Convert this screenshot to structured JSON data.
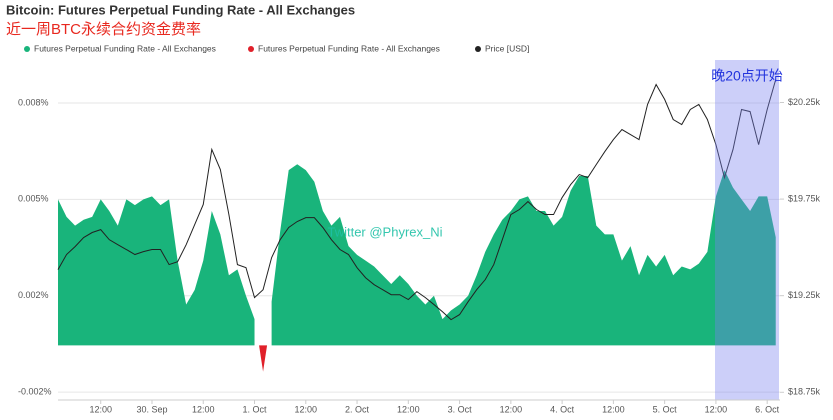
{
  "chart_data": {
    "type": "area",
    "title": "Bitcoin: Futures Perpetual Funding Rate - All Exchanges",
    "subtitle": "近一周BTC永续合约资金费率",
    "annotations": [
      "晚20点开始",
      "Twitter @Phyrex_Ni"
    ],
    "x": [
      0,
      2,
      4,
      6,
      8,
      10,
      12,
      14,
      16,
      18,
      20,
      22,
      24,
      26,
      28,
      30,
      32,
      34,
      36,
      38,
      40,
      42,
      44,
      46,
      48,
      50,
      52,
      54,
      56,
      58,
      60,
      62,
      64,
      66,
      68,
      70,
      72,
      74,
      76,
      78,
      80,
      82,
      84,
      86,
      88,
      90,
      92,
      94,
      96,
      98,
      100,
      102,
      104,
      106,
      108,
      110,
      112,
      114,
      116,
      118,
      120,
      122,
      124,
      126,
      128,
      130,
      132,
      134,
      136,
      138,
      140,
      142,
      144,
      146,
      148,
      150,
      152,
      154,
      156,
      158,
      160,
      162,
      164,
      166,
      168
    ],
    "xlim": [
      0,
      169
    ],
    "xticks": [
      {
        "value": 10,
        "label": "12:00"
      },
      {
        "value": 22,
        "label": "30. Sep"
      },
      {
        "value": 34,
        "label": "12:00"
      },
      {
        "value": 46,
        "label": "1. Oct"
      },
      {
        "value": 58,
        "label": "12:00"
      },
      {
        "value": 70,
        "label": "2. Oct"
      },
      {
        "value": 82,
        "label": "12:00"
      },
      {
        "value": 94,
        "label": "3. Oct"
      },
      {
        "value": 106,
        "label": "12:00"
      },
      {
        "value": 118,
        "label": "4. Oct"
      },
      {
        "value": 130,
        "label": "12:00"
      },
      {
        "value": 142,
        "label": "5. Oct"
      },
      {
        "value": 154,
        "label": "12:00"
      },
      {
        "value": 166,
        "label": "6. Oct"
      }
    ],
    "ylim": [
      -0.00187,
      0.00977
    ],
    "yticks": [
      {
        "value": -0.0016,
        "label": "-0.002%"
      },
      {
        "value": 0.0017,
        "label": "0.002%"
      },
      {
        "value": 0.005,
        "label": "0.005%"
      },
      {
        "value": 0.0083,
        "label": "0.008%"
      }
    ],
    "y2lim": [
      18710,
      20470
    ],
    "y2ticks": [
      {
        "value": 18750,
        "label": "$18.75k"
      },
      {
        "value": 19250,
        "label": "$19.25k"
      },
      {
        "value": 19750,
        "label": "$19.75k"
      },
      {
        "value": 20250,
        "label": "$20.25k"
      }
    ],
    "grid": true,
    "series": [
      {
        "name": "Futures Perpetual Funding Rate - All Exchanges",
        "color": "#19b47b",
        "values": [
          0.005,
          0.0044,
          0.0041,
          0.0043,
          0.0044,
          0.005,
          0.0046,
          0.0041,
          0.005,
          0.0048,
          0.005,
          0.0051,
          0.0048,
          0.005,
          0.0029,
          0.0014,
          0.0019,
          0.0029,
          0.0046,
          0.0038,
          0.0024,
          0.0026,
          0.0017,
          0.0009,
          null,
          0.0015,
          0.0039,
          0.006,
          0.0062,
          0.006,
          0.0056,
          0.0046,
          0.0041,
          0.0044,
          0.0034,
          0.0031,
          0.0029,
          0.0027,
          0.0024,
          0.0021,
          0.0024,
          0.0021,
          0.0017,
          0.0014,
          0.0017,
          0.0009,
          0.0012,
          0.0014,
          0.0017,
          0.0024,
          0.0032,
          0.0038,
          0.0043,
          0.0046,
          0.005,
          0.0051,
          0.0046,
          0.0046,
          0.0041,
          0.0044,
          0.0053,
          0.0058,
          0.0058,
          0.0041,
          0.0038,
          0.0038,
          0.0029,
          0.0034,
          0.0024,
          0.0031,
          0.0027,
          0.0031,
          0.0024,
          0.0027,
          0.0026,
          0.0028,
          0.0032,
          0.0051,
          0.006,
          0.0054,
          0.005,
          0.0046,
          0.0051,
          0.0051,
          0.0037
        ]
      },
      {
        "name": "Futures Perpetual Funding Rate - All Exchanges",
        "color": "#e0202a",
        "values": [
          null,
          null,
          null,
          null,
          null,
          null,
          null,
          null,
          null,
          null,
          null,
          null,
          null,
          null,
          null,
          null,
          null,
          null,
          null,
          null,
          null,
          null,
          null,
          null,
          -0.0009,
          null,
          null,
          null,
          null,
          null,
          null,
          null,
          null,
          null,
          null,
          null,
          null,
          null,
          null,
          null,
          null,
          null,
          null,
          null,
          null,
          null,
          null,
          null,
          null,
          null,
          null,
          null,
          null,
          null,
          null,
          null,
          null,
          null,
          null,
          null,
          null,
          null,
          null,
          null,
          null,
          null,
          null,
          null,
          null,
          null,
          null,
          null,
          null,
          null,
          null,
          null,
          null,
          null,
          null,
          null,
          null,
          null,
          null,
          null,
          null
        ]
      },
      {
        "name": "Price [USD]",
        "color": "#222222",
        "axis": "y2",
        "values": [
          19385,
          19463,
          19504,
          19551,
          19577,
          19592,
          19540,
          19514,
          19489,
          19463,
          19478,
          19489,
          19489,
          19411,
          19426,
          19514,
          19618,
          19722,
          20007,
          19903,
          19670,
          19411,
          19395,
          19240,
          19281,
          19447,
          19540,
          19603,
          19634,
          19654,
          19654,
          19603,
          19540,
          19489,
          19463,
          19395,
          19343,
          19307,
          19281,
          19255,
          19255,
          19230,
          19271,
          19240,
          19204,
          19167,
          19126,
          19152,
          19219,
          19281,
          19333,
          19411,
          19540,
          19670,
          19696,
          19737,
          19696,
          19670,
          19670,
          19758,
          19825,
          19877,
          19861,
          19929,
          19996,
          20058,
          20110,
          20084,
          20058,
          20240,
          20343,
          20266,
          20162,
          20136,
          20214,
          20240,
          20162,
          20032,
          19861,
          20007,
          20214,
          20203,
          20032,
          20214,
          20369
        ]
      }
    ]
  }
}
